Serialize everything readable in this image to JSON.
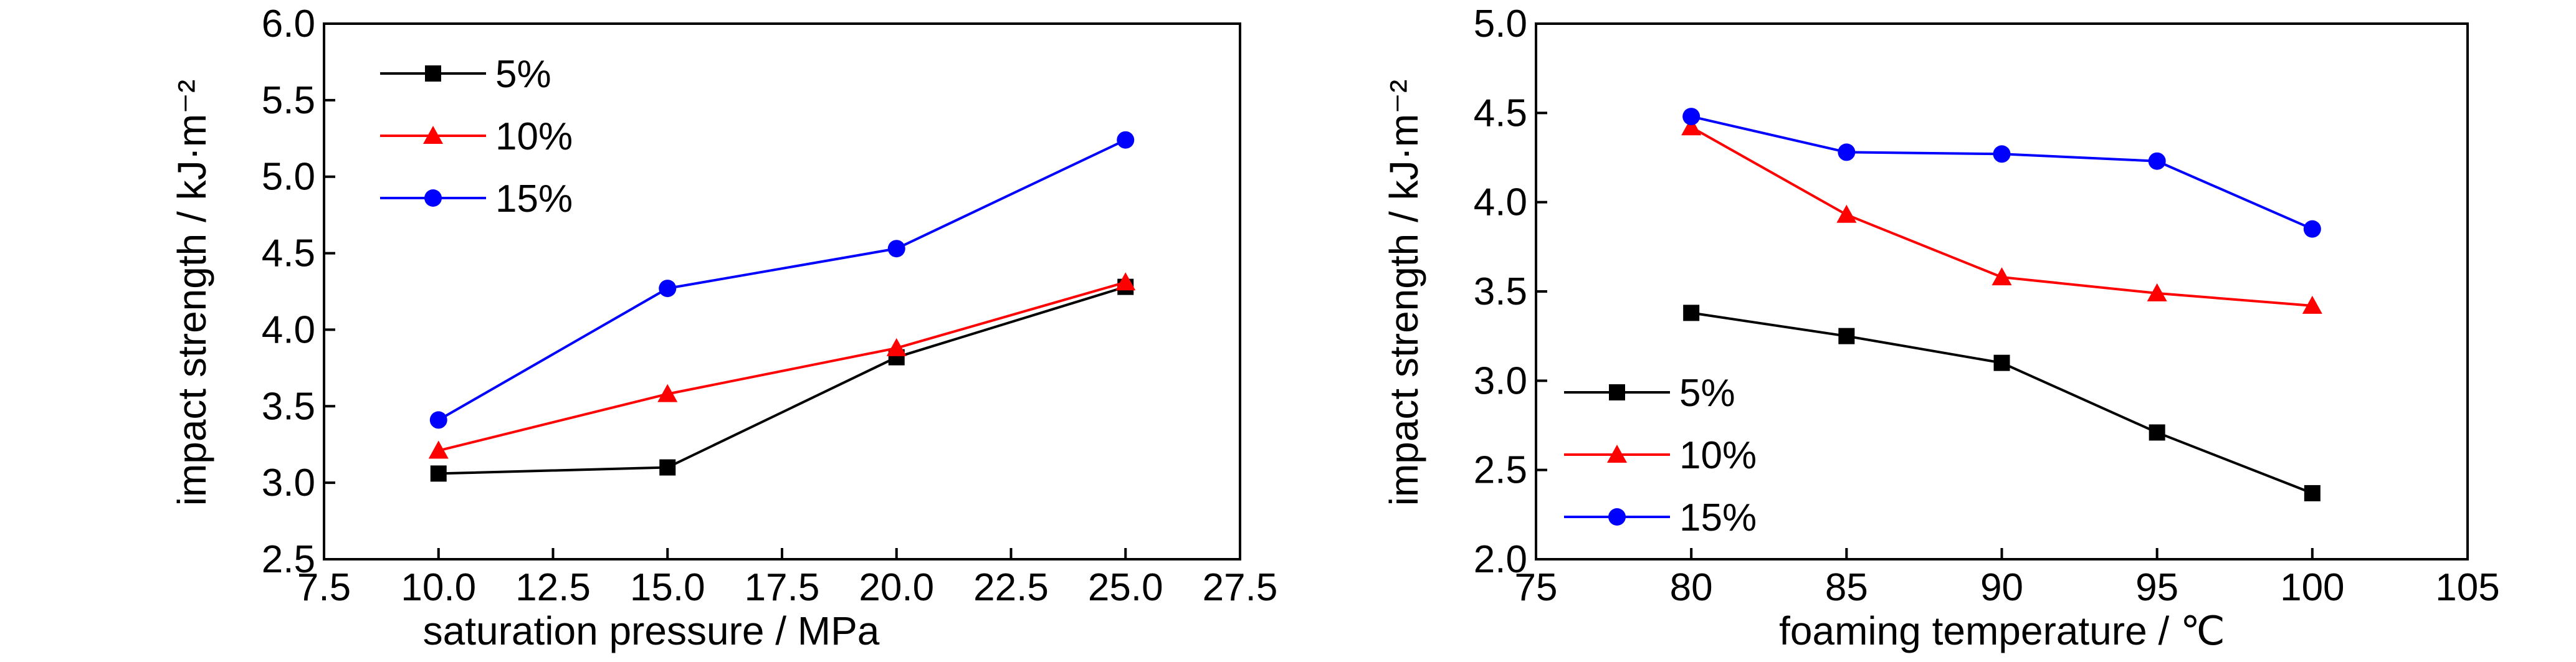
{
  "chart_data": [
    {
      "type": "line",
      "xlabel": "saturation pressure / MPa",
      "ylabel": "impact strength / kJ·m⁻²",
      "xlim": [
        7.5,
        27.5
      ],
      "ylim": [
        2.5,
        6.0
      ],
      "xticks": [
        "7.5",
        "10.0",
        "12.5",
        "15.0",
        "17.5",
        "20.0",
        "22.5",
        "25.0",
        "27.5"
      ],
      "yticks": [
        "2.5",
        "3.0",
        "3.5",
        "4.0",
        "4.5",
        "5.0",
        "5.5",
        "6.0"
      ],
      "x": [
        10,
        15,
        20,
        25
      ],
      "legend_position": "top-left",
      "grid": false,
      "series": [
        {
          "name": "5%",
          "color": "#000000",
          "marker": "square",
          "values": [
            3.06,
            3.1,
            3.82,
            4.28
          ]
        },
        {
          "name": "10%",
          "color": "#ff0000",
          "marker": "triangle",
          "values": [
            3.21,
            3.58,
            3.88,
            4.31
          ]
        },
        {
          "name": "15%",
          "color": "#0000ff",
          "marker": "circle",
          "values": [
            3.41,
            4.27,
            4.53,
            5.24
          ]
        }
      ]
    },
    {
      "type": "line",
      "xlabel": "foaming temperature / ℃",
      "ylabel": "impact strength / kJ·m⁻²",
      "xlim": [
        75,
        105
      ],
      "ylim": [
        2.0,
        5.0
      ],
      "xticks": [
        "75",
        "80",
        "85",
        "90",
        "95",
        "100",
        "105"
      ],
      "yticks": [
        "2.0",
        "2.5",
        "3.0",
        "3.5",
        "4.0",
        "4.5",
        "5.0"
      ],
      "x": [
        80,
        85,
        90,
        95,
        100
      ],
      "legend_position": "bottom-left",
      "grid": false,
      "series": [
        {
          "name": "5%",
          "color": "#000000",
          "marker": "square",
          "values": [
            3.38,
            3.25,
            3.1,
            2.71,
            2.37
          ]
        },
        {
          "name": "10%",
          "color": "#ff0000",
          "marker": "triangle",
          "values": [
            4.42,
            3.93,
            3.58,
            3.49,
            3.42
          ]
        },
        {
          "name": "15%",
          "color": "#0000ff",
          "marker": "circle",
          "values": [
            4.48,
            4.28,
            4.27,
            4.23,
            3.85
          ]
        }
      ]
    }
  ]
}
